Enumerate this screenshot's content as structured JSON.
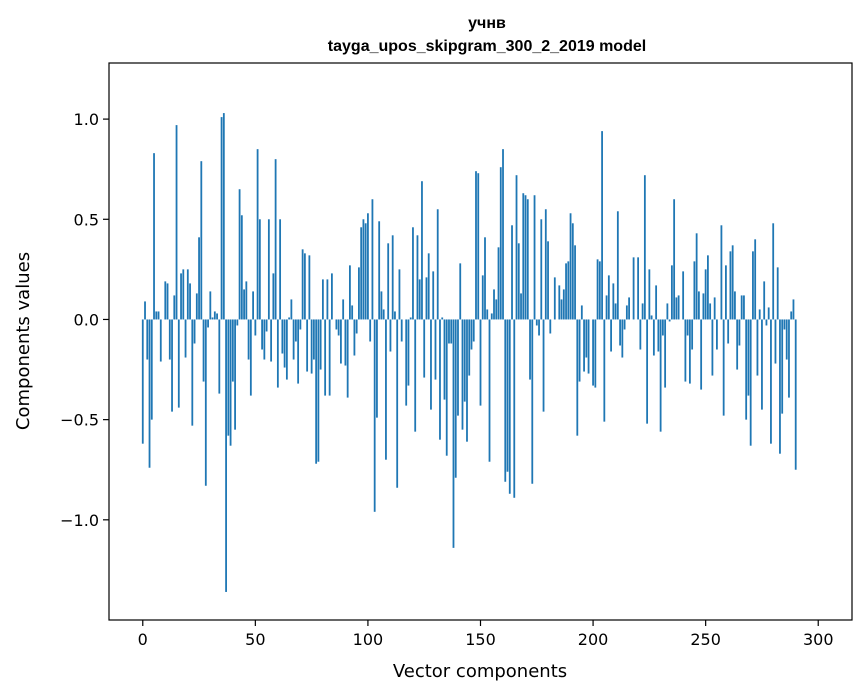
{
  "chart_data": {
    "type": "bar",
    "title": "учнв",
    "subtitle": "tayga_upos_skipgram_300_2_2019 model",
    "xlabel": "Vector components",
    "ylabel": "Components values",
    "xlim": [
      -15,
      315
    ],
    "ylim": [
      -1.5,
      1.28
    ],
    "xticks": [
      0,
      50,
      100,
      150,
      200,
      250,
      300
    ],
    "xtick_labels": [
      "0",
      "50",
      "100",
      "150",
      "200",
      "250",
      "300"
    ],
    "yticks": [
      -1.0,
      -0.5,
      0.0,
      0.5,
      1.0
    ],
    "ytick_labels": [
      "−1.0",
      "−0.5",
      "0.0",
      "0.5",
      "1.0"
    ],
    "grid": false,
    "bar_color": "#1f77b4",
    "values": [
      -0.62,
      0.09,
      -0.2,
      -0.74,
      -0.5,
      0.83,
      0.04,
      0.04,
      -0.21,
      0.0,
      0.19,
      0.18,
      -0.2,
      -0.46,
      0.12,
      0.97,
      -0.44,
      0.23,
      0.25,
      -0.19,
      0.25,
      0.18,
      -0.53,
      -0.12,
      0.13,
      0.41,
      0.79,
      -0.31,
      -0.83,
      -0.04,
      0.14,
      0.01,
      0.04,
      0.03,
      -0.37,
      1.01,
      1.03,
      -1.36,
      -0.58,
      -0.63,
      -0.31,
      -0.55,
      -0.03,
      0.65,
      0.52,
      0.15,
      0.19,
      -0.2,
      -0.38,
      0.14,
      -0.08,
      0.85,
      0.5,
      -0.15,
      -0.2,
      -0.06,
      0.5,
      -0.21,
      0.23,
      0.8,
      -0.34,
      0.5,
      -0.17,
      -0.24,
      -0.3,
      0.01,
      0.1,
      -0.2,
      -0.11,
      -0.32,
      -0.05,
      0.35,
      0.33,
      -0.26,
      0.32,
      -0.27,
      -0.2,
      -0.72,
      -0.71,
      -0.25,
      0.2,
      -0.38,
      0.2,
      -0.38,
      0.23,
      0.0,
      -0.05,
      -0.08,
      -0.22,
      0.1,
      -0.23,
      -0.39,
      0.27,
      0.07,
      -0.18,
      -0.07,
      0.26,
      0.46,
      0.5,
      0.48,
      0.53,
      -0.11,
      0.6,
      -0.96,
      -0.49,
      0.49,
      0.14,
      0.05,
      -0.7,
      0.38,
      -0.16,
      0.42,
      0.04,
      -0.84,
      0.25,
      -0.11,
      0.0,
      -0.43,
      -0.33,
      0.01,
      0.46,
      -0.56,
      0.42,
      0.2,
      0.69,
      -0.29,
      0.21,
      0.33,
      -0.45,
      0.24,
      -0.3,
      0.55,
      -0.6,
      0.01,
      -0.4,
      -0.68,
      -0.12,
      -0.12,
      -1.14,
      -0.79,
      -0.48,
      0.28,
      -0.55,
      -0.41,
      -0.61,
      -0.28,
      -0.15,
      -0.11,
      0.74,
      0.73,
      -0.43,
      0.22,
      0.41,
      0.05,
      -0.71,
      0.03,
      0.15,
      0.1,
      0.36,
      0.76,
      0.85,
      -0.81,
      -0.76,
      -0.87,
      0.47,
      -0.89,
      0.72,
      0.38,
      0.13,
      0.63,
      0.62,
      0.6,
      -0.3,
      -0.82,
      0.62,
      -0.03,
      -0.08,
      0.5,
      -0.46,
      0.55,
      0.39,
      -0.07,
      0.0,
      0.21,
      0.0,
      0.17,
      0.1,
      0.15,
      0.28,
      0.29,
      0.53,
      0.48,
      0.37,
      -0.58,
      -0.31,
      0.07,
      -0.26,
      -0.19,
      -0.27,
      0.0,
      -0.33,
      -0.34,
      0.3,
      0.29,
      0.94,
      -0.51,
      0.12,
      0.22,
      -0.16,
      0.18,
      0.08,
      0.54,
      -0.13,
      -0.19,
      -0.05,
      0.07,
      0.11,
      0.0,
      0.31,
      0.0,
      0.31,
      -0.15,
      0.08,
      0.72,
      -0.52,
      0.25,
      0.02,
      -0.18,
      0.17,
      -0.16,
      -0.56,
      -0.08,
      -0.34,
      0.08,
      -0.01,
      0.27,
      0.6,
      0.11,
      0.12,
      0.0,
      0.24,
      -0.31,
      -0.08,
      -0.32,
      -0.15,
      0.29,
      0.43,
      0.14,
      -0.35,
      0.13,
      0.25,
      0.32,
      0.08,
      -0.28,
      0.11,
      -0.15,
      0.0,
      0.47,
      -0.48,
      0.27,
      -0.12,
      0.34,
      0.37,
      0.14,
      -0.25,
      -0.13,
      0.12,
      0.12,
      -0.5,
      -0.38,
      -0.63,
      0.34,
      0.4,
      -0.28,
      0.05,
      -0.45,
      0.19,
      -0.03,
      0.06,
      -0.62,
      0.48,
      -0.22,
      0.26,
      -0.67,
      -0.47,
      -0.05,
      -0.2,
      -0.39,
      0.04,
      0.1,
      -0.75
    ]
  }
}
